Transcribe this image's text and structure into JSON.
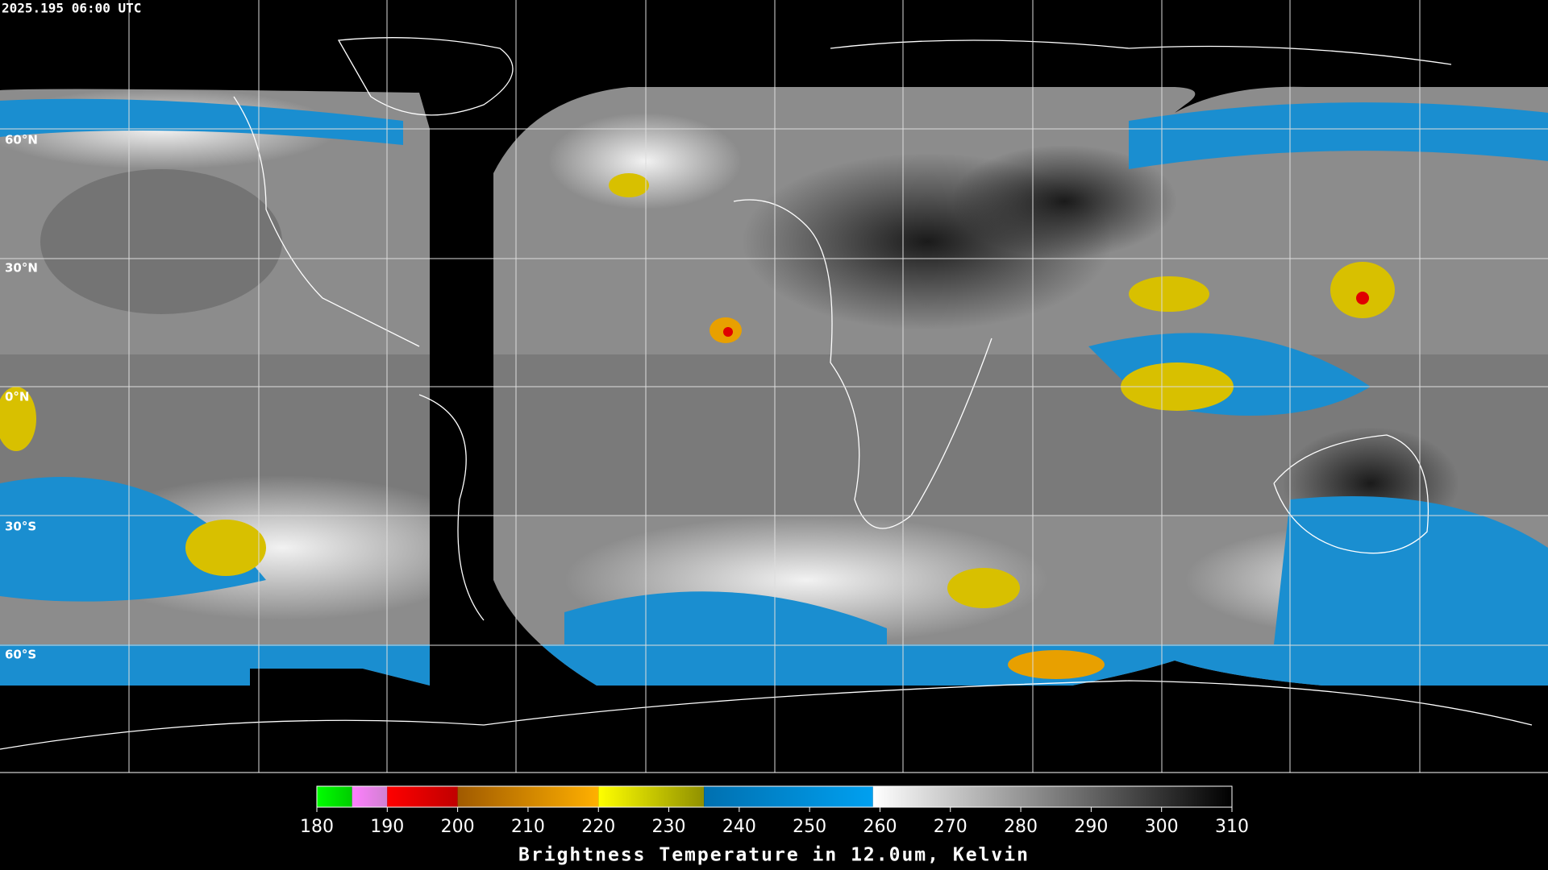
{
  "timestamp": "2025.195 06:00 UTC",
  "latitude_labels": [
    "60°N",
    "30°N",
    "0°N",
    "30°S",
    "60°S"
  ],
  "colorbar": {
    "title": "Brightness Temperature in 12.0um, Kelvin",
    "range": [
      180,
      310
    ],
    "ticks": [
      180,
      190,
      200,
      210,
      220,
      230,
      240,
      250,
      260,
      270,
      280,
      290,
      300,
      310
    ],
    "segments": [
      {
        "from": 180,
        "to": 185,
        "colors": [
          "#00ff00",
          "#00cc00"
        ]
      },
      {
        "from": 185,
        "to": 190,
        "colors": [
          "#ff80ff",
          "#d080d0"
        ]
      },
      {
        "from": 190,
        "to": 200,
        "colors": [
          "#ff0000",
          "#c00000"
        ]
      },
      {
        "from": 200,
        "to": 220,
        "colors": [
          "#a05a00",
          "#ffb000"
        ]
      },
      {
        "from": 220,
        "to": 235,
        "colors": [
          "#ffff00",
          "#909000"
        ]
      },
      {
        "from": 235,
        "to": 259,
        "colors": [
          "#0070b0",
          "#00a0f0"
        ]
      },
      {
        "from": 259,
        "to": 310,
        "colors": [
          "#ffffff",
          "#000000"
        ]
      }
    ]
  }
}
